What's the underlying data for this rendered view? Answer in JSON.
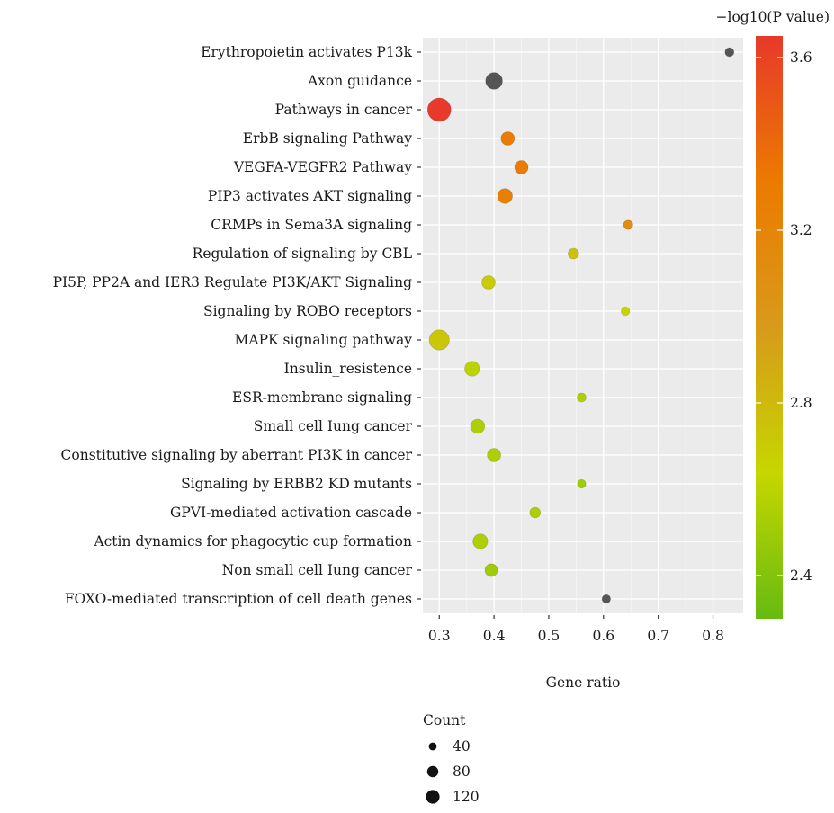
{
  "chart_data": {
    "type": "scatter",
    "title": "",
    "xlabel": "Gene ratio",
    "ylabel": "",
    "xlim": [
      0.27,
      0.855
    ],
    "xticks": [
      0.3,
      0.4,
      0.5,
      0.6,
      0.7,
      0.8
    ],
    "grid": true,
    "points": [
      {
        "term": "Erythropoietin activates P13k",
        "gene_ratio": 0.83,
        "neg_log10_p": 1.9,
        "count": 20
      },
      {
        "term": "Axon guidance",
        "gene_ratio": 0.4,
        "neg_log10_p": 1.9,
        "count": 70
      },
      {
        "term": "Pathways in cancer",
        "gene_ratio": 0.3,
        "neg_log10_p": 3.65,
        "count": 135
      },
      {
        "term": "ErbB signaling Pathway",
        "gene_ratio": 0.425,
        "neg_log10_p": 3.3,
        "count": 45
      },
      {
        "term": "VEGFA-VEGFR2 Pathway ",
        "gene_ratio": 0.45,
        "neg_log10_p": 3.3,
        "count": 45
      },
      {
        "term": "PIP3 activates AKT signaling",
        "gene_ratio": 0.42,
        "neg_log10_p": 3.25,
        "count": 55
      },
      {
        "term": "CRMPs in Sema3A signaling",
        "gene_ratio": 0.645,
        "neg_log10_p": 3.1,
        "count": 22
      },
      {
        "term": "Regulation of signaling by CBL",
        "gene_ratio": 0.545,
        "neg_log10_p": 2.75,
        "count": 28
      },
      {
        "term": "PI5P, PP2A and IER3 Regulate PI3K/AKT Signaling",
        "gene_ratio": 0.39,
        "neg_log10_p": 2.7,
        "count": 45
      },
      {
        "term": "Signaling by ROBO receptors",
        "gene_ratio": 0.64,
        "neg_log10_p": 2.65,
        "count": 18
      },
      {
        "term": "MAPK signaling pathway",
        "gene_ratio": 0.3,
        "neg_log10_p": 2.72,
        "count": 100
      },
      {
        "term": "Insulin_resistence",
        "gene_ratio": 0.36,
        "neg_log10_p": 2.6,
        "count": 55
      },
      {
        "term": "ESR-membrane signaling",
        "gene_ratio": 0.56,
        "neg_log10_p": 2.55,
        "count": 20
      },
      {
        "term": "Small cell Iung cancer",
        "gene_ratio": 0.37,
        "neg_log10_p": 2.55,
        "count": 50
      },
      {
        "term": "Constitutive signaling by aberrant PI3K in cancer ",
        "gene_ratio": 0.4,
        "neg_log10_p": 2.55,
        "count": 45
      },
      {
        "term": "Signaling by ERBB2 KD mutants",
        "gene_ratio": 0.56,
        "neg_log10_p": 2.5,
        "count": 18
      },
      {
        "term": "GPVI-mediated activation cascade",
        "gene_ratio": 0.475,
        "neg_log10_p": 2.55,
        "count": 28
      },
      {
        "term": "Actin dynamics for phagocytic cup formation",
        "gene_ratio": 0.375,
        "neg_log10_p": 2.55,
        "count": 55
      },
      {
        "term": "Non small cell Iung cancer",
        "gene_ratio": 0.395,
        "neg_log10_p": 2.5,
        "count": 40
      },
      {
        "term": "FOXO-mediated transcription of cell death genes",
        "gene_ratio": 0.605,
        "neg_log10_p": 1.9,
        "count": 18
      }
    ],
    "color_scale": {
      "title": "−log10(P value)",
      "ticks": [
        3.6,
        3.2,
        2.8,
        2.4
      ],
      "range": [
        2.3,
        3.65
      ],
      "colors": [
        "#66bb11",
        "#c6d600",
        "#d89a1a",
        "#ec7a00",
        "#e8392a"
      ],
      "out_of_range_color": "#555555"
    },
    "size_legend": {
      "title": "Count",
      "values": [
        40,
        80,
        120
      ]
    }
  }
}
